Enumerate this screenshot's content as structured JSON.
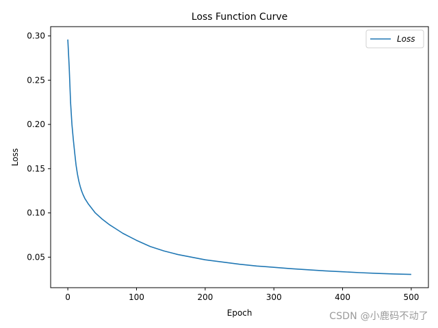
{
  "chart_data": {
    "type": "line",
    "title": "Loss Function Curve",
    "xlabel": "Epoch",
    "ylabel": "Loss",
    "xlim": [
      -25,
      525
    ],
    "ylim": [
      0.0155,
      0.3105
    ],
    "xticks": [
      0,
      100,
      200,
      300,
      400,
      500
    ],
    "xtick_labels": [
      "0",
      "100",
      "200",
      "300",
      "400",
      "500"
    ],
    "yticks": [
      0.05,
      0.1,
      0.15,
      0.2,
      0.25,
      0.3
    ],
    "ytick_labels": [
      "0.05",
      "0.10",
      "0.15",
      "0.20",
      "0.25",
      "0.30"
    ],
    "grid": false,
    "legend_position": "top-right",
    "series": [
      {
        "name": "Loss",
        "color": "#1f77b4",
        "points": [
          [
            0,
            0.296
          ],
          [
            2,
            0.265
          ],
          [
            4,
            0.225
          ],
          [
            6,
            0.2
          ],
          [
            8,
            0.183
          ],
          [
            10,
            0.168
          ],
          [
            12,
            0.154
          ],
          [
            14,
            0.144
          ],
          [
            16,
            0.136
          ],
          [
            18,
            0.13
          ],
          [
            20,
            0.125
          ],
          [
            22,
            0.121
          ],
          [
            25,
            0.116
          ],
          [
            30,
            0.11
          ],
          [
            35,
            0.105
          ],
          [
            40,
            0.1
          ],
          [
            50,
            0.093
          ],
          [
            60,
            0.087
          ],
          [
            70,
            0.082
          ],
          [
            80,
            0.077
          ],
          [
            90,
            0.073
          ],
          [
            100,
            0.069
          ],
          [
            120,
            0.062
          ],
          [
            140,
            0.057
          ],
          [
            160,
            0.053
          ],
          [
            180,
            0.05
          ],
          [
            200,
            0.047
          ],
          [
            225,
            0.0445
          ],
          [
            250,
            0.042
          ],
          [
            275,
            0.04
          ],
          [
            300,
            0.0385
          ],
          [
            325,
            0.037
          ],
          [
            350,
            0.0357
          ],
          [
            375,
            0.0345
          ],
          [
            400,
            0.0335
          ],
          [
            425,
            0.0325
          ],
          [
            450,
            0.0317
          ],
          [
            475,
            0.031
          ],
          [
            500,
            0.0305
          ]
        ]
      }
    ]
  },
  "watermark": "CSDN @小鹿码不动了"
}
